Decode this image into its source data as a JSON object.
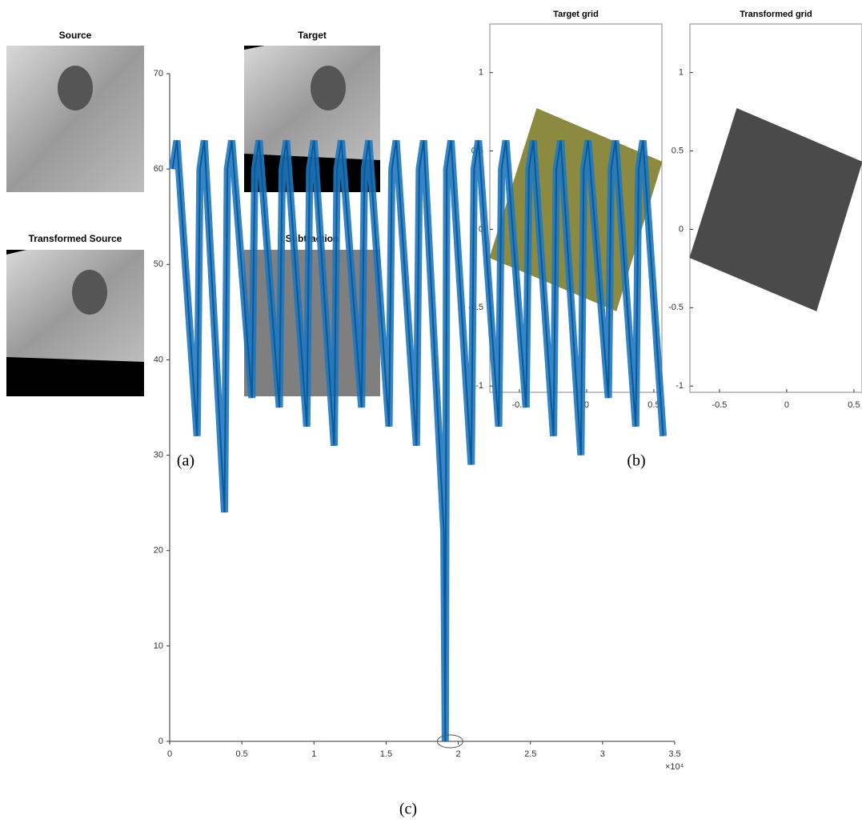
{
  "panel_a": {
    "label": "(a)",
    "images": [
      {
        "title": "Source"
      },
      {
        "title": "Target"
      },
      {
        "title": "Transformed Source"
      },
      {
        "title": "Subtraction"
      }
    ]
  },
  "panel_b": {
    "label": "(b)",
    "charts": [
      {
        "type": "polygon",
        "title": "Target grid",
        "xlim": [
          -0.72,
          0.56
        ],
        "ylim": [
          -1.04,
          1.31
        ],
        "xticks": [
          -0.5,
          0,
          0.5
        ],
        "yticks": [
          -1,
          -0.5,
          0,
          0.5,
          1
        ],
        "color": "#8c8a40",
        "polygon": {
          "x": [
            -0.37,
            0.56,
            0.22,
            -0.72
          ],
          "y": [
            0.77,
            0.43,
            -0.52,
            -0.18
          ]
        }
      },
      {
        "type": "polygon",
        "title": "Transformed grid",
        "xlim": [
          -0.72,
          0.56
        ],
        "ylim": [
          -1.04,
          1.31
        ],
        "xticks": [
          -0.5,
          0,
          0.5
        ],
        "yticks": [
          -1,
          -0.5,
          0,
          0.5,
          1
        ],
        "color": "#4a4a4a",
        "polygon": {
          "x": [
            -0.37,
            0.56,
            0.22,
            -0.72
          ],
          "y": [
            0.77,
            0.43,
            -0.52,
            -0.18
          ]
        }
      }
    ]
  },
  "panel_c": {
    "label": "(c)",
    "chart_data": {
      "type": "line",
      "xlim": [
        0,
        3.5
      ],
      "ylim": [
        0,
        70
      ],
      "xticks": [
        0,
        0.5,
        1,
        1.5,
        2,
        2.5,
        3,
        3.5
      ],
      "yticks": [
        0,
        10,
        20,
        30,
        40,
        50,
        60,
        70
      ],
      "x_multiplier": "×10⁴",
      "series": [
        {
          "color": "#1f78c0",
          "x": [
            0.02,
            0.05,
            0.19,
            0.21,
            0.24,
            0.38,
            0.4,
            0.43,
            0.57,
            0.59,
            0.62,
            0.76,
            0.78,
            0.81,
            0.95,
            0.97,
            1.0,
            1.14,
            1.16,
            1.19,
            1.33,
            1.35,
            1.38,
            1.52,
            1.54,
            1.57,
            1.71,
            1.73,
            1.76,
            1.9,
            1.91,
            1.92,
            1.95,
            2.09,
            2.11,
            2.14,
            2.28,
            2.3,
            2.33,
            2.47,
            2.49,
            2.52,
            2.66,
            2.68,
            2.71,
            2.85,
            2.87,
            2.9,
            3.04,
            3.06,
            3.09,
            3.23,
            3.25,
            3.28,
            3.42
          ],
          "values": [
            60,
            63,
            32,
            60,
            63,
            24,
            60,
            63,
            36,
            60,
            63,
            35,
            60,
            63,
            33,
            60,
            63,
            31,
            60,
            63,
            35,
            60,
            63,
            33,
            60,
            63,
            31,
            60,
            63,
            22,
            0,
            60,
            63,
            29,
            60,
            63,
            33,
            60,
            63,
            35,
            60,
            63,
            32,
            60,
            63,
            30,
            60,
            63,
            36,
            60,
            63,
            33,
            60,
            63,
            32
          ]
        }
      ]
    }
  }
}
